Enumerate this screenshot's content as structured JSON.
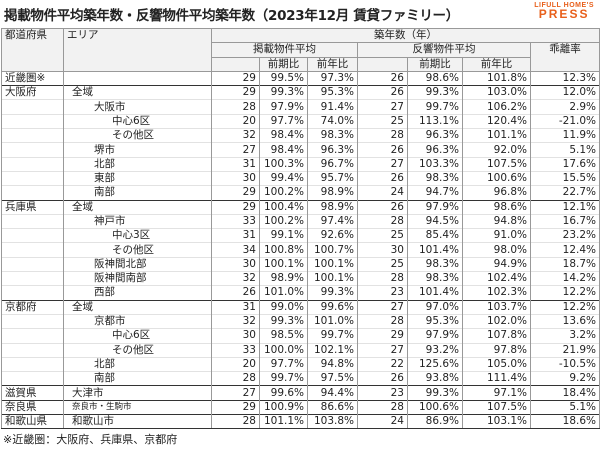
{
  "header": {
    "title": "掲載物件平均築年数・反響物件平均築年数（2023年12月 賃貸ファミリー）",
    "logo_top": "LIFULL HOME'S",
    "logo_bottom": "PRESS"
  },
  "table": {
    "columns": {
      "pref": "都道府県",
      "area": "エリア",
      "age": "築年数（年）",
      "listing": "掲載物件平均",
      "response": "反響物件平均",
      "gap": "乖離率",
      "listing_qoq": "前期比",
      "listing_yoy": "前年比",
      "response_qoq": "前期比",
      "response_yoy": "前年比"
    },
    "rows": [
      {
        "pref": "近畿圏※",
        "values": [
          "29",
          "99.5%",
          "97.3%",
          "26",
          "98.6%",
          "101.8%",
          "12.3%"
        ]
      },
      {
        "pref": "大阪府",
        "area": "全域",
        "values": [
          "29",
          "99.3%",
          "95.3%",
          "26",
          "99.3%",
          "103.0%",
          "12.0%"
        ]
      },
      {
        "area": "大阪市",
        "values": [
          "28",
          "97.9%",
          "91.4%",
          "27",
          "99.7%",
          "106.2%",
          "2.9%"
        ]
      },
      {
        "area": "中心6区",
        "values": [
          "20",
          "97.7%",
          "74.0%",
          "25",
          "113.1%",
          "120.4%",
          "-21.0%"
        ]
      },
      {
        "area": "その他区",
        "values": [
          "32",
          "98.4%",
          "98.3%",
          "28",
          "96.3%",
          "101.1%",
          "11.9%"
        ]
      },
      {
        "area": "堺市",
        "values": [
          "27",
          "98.4%",
          "96.3%",
          "26",
          "96.3%",
          "92.0%",
          "5.1%"
        ]
      },
      {
        "area": "北部",
        "values": [
          "31",
          "100.3%",
          "96.7%",
          "27",
          "103.3%",
          "107.5%",
          "17.6%"
        ]
      },
      {
        "area": "東部",
        "values": [
          "30",
          "99.4%",
          "95.7%",
          "26",
          "98.3%",
          "100.6%",
          "15.5%"
        ]
      },
      {
        "area": "南部",
        "values": [
          "29",
          "100.2%",
          "98.9%",
          "24",
          "94.7%",
          "96.8%",
          "22.7%"
        ]
      },
      {
        "pref": "兵庫県",
        "area": "全域",
        "values": [
          "29",
          "100.4%",
          "98.9%",
          "26",
          "97.9%",
          "98.6%",
          "12.1%"
        ]
      },
      {
        "area": "神戸市",
        "values": [
          "33",
          "100.2%",
          "97.4%",
          "28",
          "94.5%",
          "94.8%",
          "16.7%"
        ]
      },
      {
        "area": "中心3区",
        "values": [
          "31",
          "99.1%",
          "92.6%",
          "25",
          "85.4%",
          "91.0%",
          "23.2%"
        ]
      },
      {
        "area": "その他区",
        "values": [
          "34",
          "100.8%",
          "100.7%",
          "30",
          "101.4%",
          "98.0%",
          "12.4%"
        ]
      },
      {
        "area": "阪神間北部",
        "values": [
          "30",
          "100.1%",
          "100.1%",
          "25",
          "98.3%",
          "94.9%",
          "18.7%"
        ]
      },
      {
        "area": "阪神間南部",
        "values": [
          "32",
          "98.9%",
          "100.1%",
          "28",
          "98.3%",
          "102.4%",
          "14.2%"
        ]
      },
      {
        "area": "西部",
        "values": [
          "26",
          "101.0%",
          "99.3%",
          "23",
          "101.4%",
          "102.3%",
          "12.2%"
        ]
      },
      {
        "pref": "京都府",
        "area": "全域",
        "values": [
          "31",
          "99.0%",
          "99.6%",
          "27",
          "97.0%",
          "103.7%",
          "12.2%"
        ]
      },
      {
        "area": "京都市",
        "values": [
          "32",
          "99.3%",
          "101.0%",
          "28",
          "95.3%",
          "102.0%",
          "13.6%"
        ]
      },
      {
        "area": "中心6区",
        "values": [
          "30",
          "98.5%",
          "99.7%",
          "29",
          "97.9%",
          "107.8%",
          "3.2%"
        ]
      },
      {
        "area": "その他区",
        "values": [
          "33",
          "100.0%",
          "102.1%",
          "27",
          "93.2%",
          "97.8%",
          "21.9%"
        ]
      },
      {
        "area": "北部",
        "values": [
          "20",
          "97.7%",
          "94.8%",
          "22",
          "125.6%",
          "105.0%",
          "-10.5%"
        ]
      },
      {
        "area": "南部",
        "values": [
          "28",
          "99.7%",
          "97.5%",
          "26",
          "93.8%",
          "111.4%",
          "9.2%"
        ]
      },
      {
        "pref": "滋賀県",
        "area": "大津市",
        "values": [
          "27",
          "99.6%",
          "94.4%",
          "23",
          "99.3%",
          "97.1%",
          "18.4%"
        ]
      },
      {
        "pref": "奈良県",
        "area": "奈良市・生駒市",
        "values": [
          "29",
          "100.9%",
          "86.6%",
          "28",
          "100.6%",
          "107.5%",
          "5.1%"
        ]
      },
      {
        "pref": "和歌山県",
        "area": "和歌山市",
        "values": [
          "28",
          "101.1%",
          "103.8%",
          "24",
          "86.9%",
          "103.1%",
          "18.6%"
        ]
      }
    ]
  },
  "footnote": "※近畿圏：大阪府、兵庫県、京都府"
}
